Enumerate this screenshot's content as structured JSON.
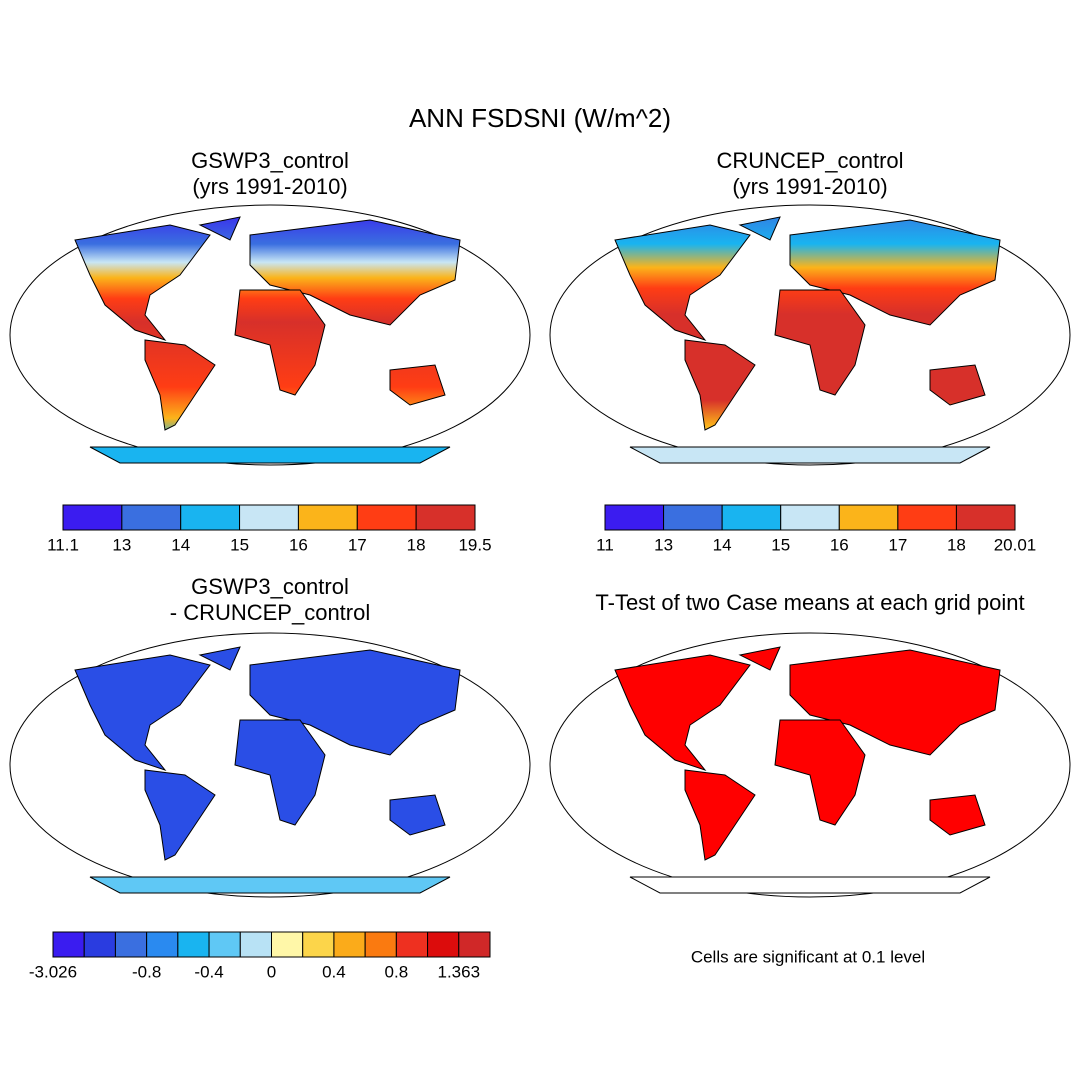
{
  "title": "ANN FSDSNI (W/m^2)",
  "panels": [
    {
      "title": [
        "GSWP3_control",
        "(yrs 1991-2010)"
      ],
      "colorbar": {
        "colors": [
          "#3b1cf0",
          "#3a6fe0",
          "#19b4f0",
          "#c8e6f5",
          "#fbb41a",
          "#ff3d14",
          "#d7302a"
        ],
        "levels": [
          11.1,
          13,
          14,
          15,
          16,
          17,
          18,
          19.5
        ]
      }
    },
    {
      "title": [
        "CRUNCEP_control",
        "(yrs 1991-2010)"
      ],
      "colorbar": {
        "colors": [
          "#3b1cf0",
          "#3a6fe0",
          "#19b4f0",
          "#c8e6f5",
          "#fbb41a",
          "#ff3d14",
          "#d7302a"
        ],
        "levels": [
          11,
          13,
          14,
          15,
          16,
          17,
          18,
          20.01
        ]
      }
    },
    {
      "title": [
        "GSWP3_control",
        "- CRUNCEP_control"
      ],
      "colorbar": {
        "colors": [
          "#3a1cf0",
          "#2a3ce0",
          "#3a6fe0",
          "#2a8af0",
          "#19b4f0",
          "#5fc8f5",
          "#b8e2f5",
          "#fff7a8",
          "#fcd54a",
          "#fbab1a",
          "#fa7a10",
          "#ee3020",
          "#dc0c0c",
          "#d02828"
        ],
        "levels": [
          -3.026,
          null,
          null,
          -0.8,
          null,
          -0.4,
          null,
          0,
          null,
          0.4,
          null,
          0.8,
          null,
          1.363
        ]
      }
    },
    {
      "title": [
        "T-Test of two Case means at each grid point"
      ],
      "note": "Cells are significant at 0.1 level"
    }
  ]
}
